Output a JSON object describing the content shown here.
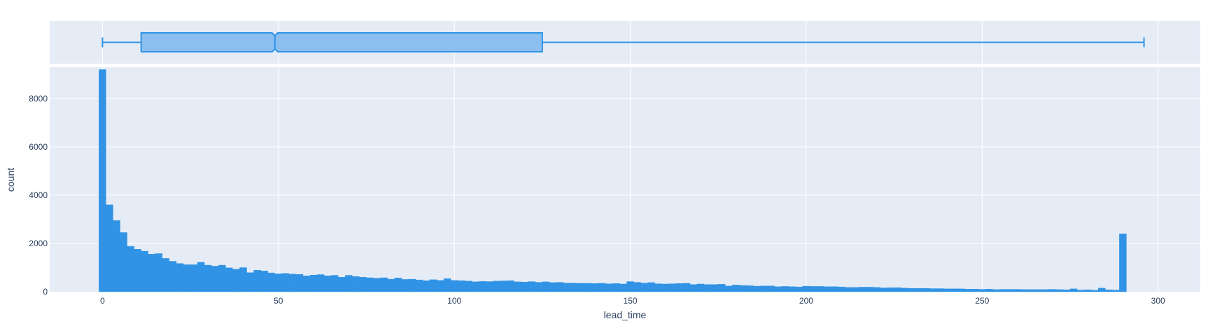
{
  "chart_data": [
    {
      "type": "box",
      "orientation": "horizontal",
      "notched": true,
      "xlim": [
        -15,
        312
      ],
      "stats": {
        "min": 0,
        "q1": 11,
        "median": 49,
        "q3": 125,
        "max": 296
      },
      "grid": true
    },
    {
      "type": "bar",
      "kind": "histogram",
      "xlabel": "lead_time",
      "ylabel": "count",
      "xlim": [
        -15,
        312
      ],
      "ylim": [
        0,
        9300
      ],
      "bin_width": 2,
      "bin_start": -1,
      "x_ticks": [
        "0",
        "50",
        "100",
        "150",
        "200",
        "250",
        "300"
      ],
      "x_tick_values": [
        0,
        50,
        100,
        150,
        200,
        250,
        300
      ],
      "y_ticks": [
        "0",
        "2000",
        "4000",
        "6000",
        "8000"
      ],
      "y_tick_values": [
        0,
        2000,
        4000,
        6000,
        8000
      ],
      "grid": true,
      "values": [
        9200,
        3600,
        2950,
        2450,
        1880,
        1760,
        1680,
        1560,
        1580,
        1380,
        1260,
        1170,
        1120,
        1120,
        1220,
        1100,
        1060,
        1100,
        990,
        930,
        1000,
        790,
        890,
        860,
        780,
        740,
        760,
        730,
        720,
        660,
        690,
        710,
        660,
        680,
        600,
        680,
        630,
        600,
        580,
        560,
        580,
        520,
        570,
        510,
        520,
        490,
        460,
        500,
        470,
        540,
        470,
        460,
        440,
        410,
        430,
        420,
        440,
        450,
        460,
        410,
        400,
        420,
        390,
        410,
        380,
        390,
        360,
        360,
        350,
        350,
        340,
        350,
        330,
        340,
        320,
        420,
        390,
        360,
        380,
        330,
        320,
        330,
        340,
        350,
        300,
        320,
        300,
        300,
        310,
        240,
        280,
        260,
        250,
        230,
        240,
        240,
        210,
        220,
        210,
        200,
        230,
        220,
        220,
        210,
        210,
        200,
        180,
        180,
        190,
        190,
        180,
        160,
        170,
        170,
        150,
        140,
        140,
        140,
        130,
        130,
        120,
        120,
        120,
        110,
        110,
        100,
        110,
        90,
        100,
        100,
        100,
        90,
        90,
        90,
        90,
        100,
        90,
        80,
        120,
        70,
        80,
        60,
        150,
        80,
        70,
        2400
      ],
      "bar_color": "#3193E5"
    }
  ],
  "colors": {
    "plot_bg": "#E5ECF6",
    "grid": "#FFFFFF",
    "box_fill": "#8ABFEF",
    "box_line": "#3193E5",
    "bar": "#3193E5",
    "text": "#2A3F5F"
  }
}
